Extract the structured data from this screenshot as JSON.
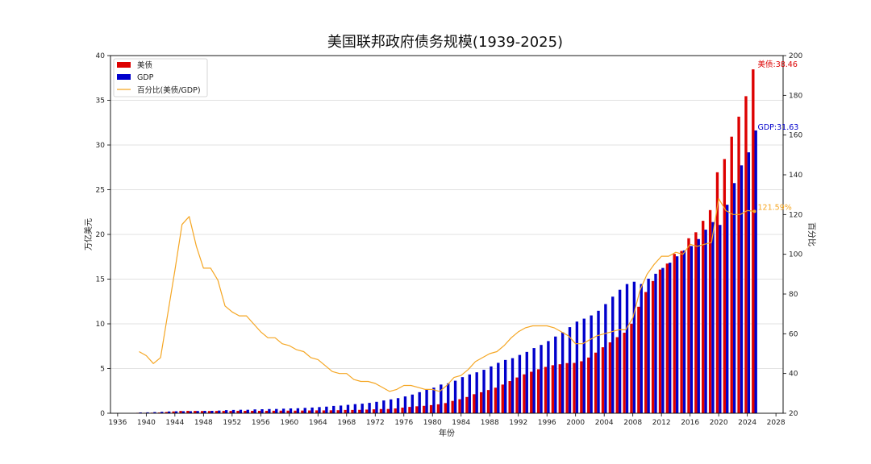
{
  "chart_data": {
    "type": "bar",
    "title": "美国联邦政府债务规模(1939-2025)",
    "xlabel": "年份",
    "ylabel": "万亿美元",
    "y2label": "百分比",
    "xlim": [
      1935,
      2029
    ],
    "ylim": [
      0,
      40
    ],
    "y2lim": [
      20,
      200
    ],
    "xticks": [
      1936,
      1940,
      1944,
      1948,
      1952,
      1956,
      1960,
      1964,
      1968,
      1972,
      1976,
      1980,
      1984,
      1988,
      1992,
      1996,
      2000,
      2004,
      2008,
      2012,
      2016,
      2020,
      2024,
      2028
    ],
    "yticks": [
      0,
      5,
      10,
      15,
      20,
      25,
      30,
      35,
      40
    ],
    "y2ticks": [
      20,
      40,
      60,
      80,
      100,
      120,
      140,
      160,
      180,
      200
    ],
    "grid": "y",
    "legend_position": "top-left",
    "years": [
      1939,
      1940,
      1941,
      1942,
      1943,
      1944,
      1945,
      1946,
      1947,
      1948,
      1949,
      1950,
      1951,
      1952,
      1953,
      1954,
      1955,
      1956,
      1957,
      1958,
      1959,
      1960,
      1961,
      1962,
      1963,
      1964,
      1965,
      1966,
      1967,
      1968,
      1969,
      1970,
      1971,
      1972,
      1973,
      1974,
      1975,
      1976,
      1977,
      1978,
      1979,
      1980,
      1981,
      1982,
      1983,
      1984,
      1985,
      1986,
      1987,
      1988,
      1989,
      1990,
      1991,
      1992,
      1993,
      1994,
      1995,
      1996,
      1997,
      1998,
      1999,
      2000,
      2001,
      2002,
      2003,
      2004,
      2005,
      2006,
      2007,
      2008,
      2009,
      2010,
      2011,
      2012,
      2013,
      2014,
      2015,
      2016,
      2017,
      2018,
      2019,
      2020,
      2021,
      2022,
      2023,
      2024,
      2025
    ],
    "series": [
      {
        "name": "美债",
        "kind": "bar",
        "axis": "left",
        "color": "#dd0000",
        "values": [
          0.05,
          0.05,
          0.06,
          0.08,
          0.14,
          0.2,
          0.26,
          0.27,
          0.26,
          0.25,
          0.25,
          0.26,
          0.26,
          0.26,
          0.27,
          0.27,
          0.27,
          0.27,
          0.27,
          0.28,
          0.29,
          0.29,
          0.29,
          0.3,
          0.31,
          0.32,
          0.32,
          0.33,
          0.34,
          0.37,
          0.37,
          0.38,
          0.41,
          0.44,
          0.47,
          0.48,
          0.54,
          0.63,
          0.71,
          0.78,
          0.83,
          0.91,
          1.0,
          1.14,
          1.38,
          1.57,
          1.82,
          2.13,
          2.35,
          2.6,
          2.86,
          3.21,
          3.6,
          4.0,
          4.35,
          4.64,
          4.92,
          5.18,
          5.37,
          5.48,
          5.61,
          5.63,
          5.81,
          6.23,
          6.78,
          7.38,
          7.93,
          8.51,
          9.01,
          10.02,
          11.91,
          13.56,
          14.79,
          16.07,
          16.74,
          17.82,
          18.15,
          19.57,
          20.24,
          21.52,
          22.72,
          26.95,
          28.43,
          30.93,
          33.17,
          35.46,
          38.46
        ]
      },
      {
        "name": "GDP",
        "kind": "bar",
        "axis": "left",
        "color": "#0000cc",
        "values": [
          0.09,
          0.1,
          0.13,
          0.16,
          0.2,
          0.22,
          0.23,
          0.23,
          0.25,
          0.27,
          0.27,
          0.3,
          0.35,
          0.37,
          0.39,
          0.39,
          0.43,
          0.45,
          0.47,
          0.48,
          0.51,
          0.54,
          0.56,
          0.6,
          0.64,
          0.69,
          0.74,
          0.82,
          0.86,
          0.94,
          1.02,
          1.07,
          1.16,
          1.28,
          1.43,
          1.55,
          1.69,
          1.88,
          2.09,
          2.36,
          2.63,
          2.86,
          3.21,
          3.35,
          3.64,
          4.04,
          4.34,
          4.58,
          4.86,
          5.24,
          5.64,
          5.96,
          6.16,
          6.52,
          6.86,
          7.29,
          7.64,
          8.07,
          8.58,
          9.06,
          9.63,
          10.25,
          10.58,
          10.94,
          11.46,
          12.21,
          13.04,
          13.81,
          14.45,
          14.71,
          14.45,
          15.05,
          15.6,
          16.25,
          16.84,
          17.55,
          18.21,
          18.7,
          19.48,
          20.53,
          21.38,
          21.06,
          23.32,
          25.74,
          27.72,
          29.18,
          31.63
        ]
      },
      {
        "name": "百分比(美债/GDP)",
        "kind": "line",
        "axis": "right",
        "color": "#f5a623",
        "values": [
          51,
          49,
          45,
          48,
          70,
          92,
          115,
          119,
          104,
          93,
          93,
          87,
          74,
          71,
          69,
          69,
          65,
          61,
          58,
          58,
          55,
          54,
          52,
          51,
          48,
          47,
          44,
          41,
          40,
          40,
          37,
          36,
          36,
          35,
          33,
          31,
          32,
          34,
          34,
          33,
          32,
          32,
          31,
          34,
          38,
          39,
          42,
          46,
          48,
          50,
          51,
          54,
          58,
          61,
          63,
          64,
          64,
          64,
          63,
          61,
          59,
          55,
          55,
          57,
          59,
          60,
          61,
          62,
          62,
          68,
          82,
          90,
          95,
          99,
          99,
          101,
          100,
          105,
          104,
          105,
          106,
          128,
          122,
          120,
          120,
          122,
          121.59
        ]
      }
    ],
    "annotations": {
      "debt_end": "美债:38.46",
      "gdp_end": "GDP:31.63",
      "ratio_end": "121.59%"
    }
  }
}
